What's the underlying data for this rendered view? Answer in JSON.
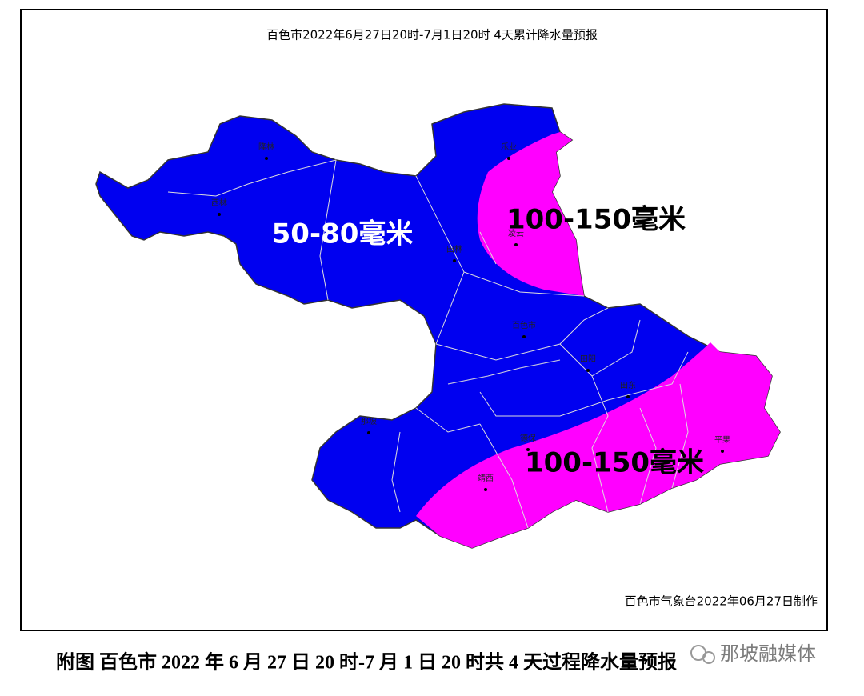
{
  "map": {
    "title": "百色市2022年6月27日20时-7月1日20时 4天累计降水量预报",
    "zones": [
      {
        "label": "50-80毫米"
      },
      {
        "label": "100-150毫米"
      },
      {
        "label": "100-150毫米"
      }
    ],
    "counties": [
      "隆林",
      "西林",
      "乐业",
      "凌云",
      "田林",
      "百色市",
      "田阳",
      "田东",
      "那坡",
      "德保",
      "靖西",
      "平果"
    ],
    "credit": "百色市气象台2022年06月27日制作"
  },
  "caption": "附图 百色市 2022 年 6 月 27 日 20 时-7 月 1 日 20 时共 4 天过程降水量预报",
  "watermark": "那坡融媒体"
}
